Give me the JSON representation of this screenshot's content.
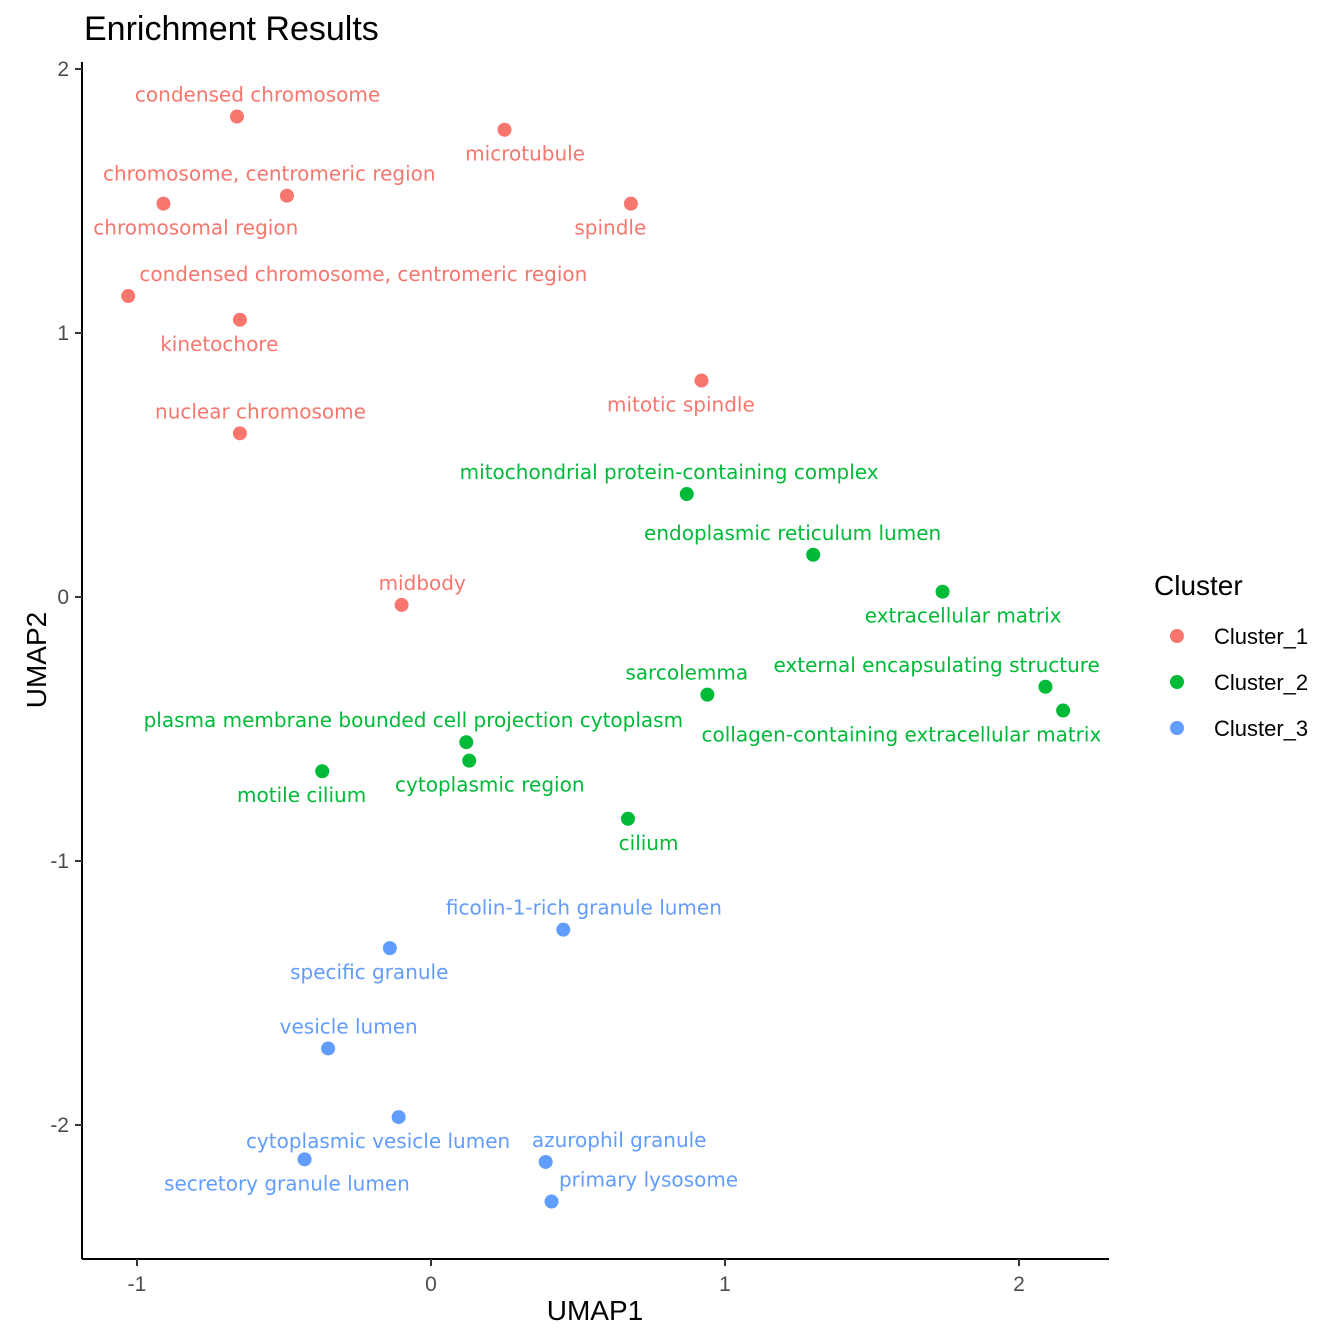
{
  "chart_data": {
    "type": "scatter",
    "title": "Enrichment Results",
    "xlabel": "UMAP1",
    "ylabel": "UMAP2",
    "xlim": [
      -1.2,
      2.3
    ],
    "ylim": [
      -2.5,
      2.05
    ],
    "x_ticks": [
      "-1",
      "0",
      "1",
      "2"
    ],
    "y_ticks": [
      "2",
      "1",
      "0",
      "-1",
      "-2"
    ],
    "grid": false,
    "legend": {
      "title": "Cluster",
      "position": "right",
      "entries": [
        {
          "name": "Cluster_1",
          "color": "#F8766D"
        },
        {
          "name": "Cluster_2",
          "color": "#00BA38"
        },
        {
          "name": "Cluster_3",
          "color": "#619CFF"
        }
      ]
    },
    "series": [
      {
        "name": "Cluster_1",
        "color": "#F8766D",
        "points": [
          {
            "label": "condensed chromosome",
            "x": -0.66,
            "y": 1.82,
            "label_pos": "above",
            "label_dx": 0.07
          },
          {
            "label": "microtubule",
            "x": 0.25,
            "y": 1.77,
            "label_pos": "below",
            "label_dx": 0.07
          },
          {
            "label": "chromosome, centromeric region",
            "x": -0.49,
            "y": 1.52,
            "label_pos": "above",
            "label_dx": -0.06
          },
          {
            "label": "chromosomal region",
            "x": -0.91,
            "y": 1.49,
            "label_pos": "below",
            "label_dx": 0.11
          },
          {
            "label": "spindle",
            "x": 0.68,
            "y": 1.49,
            "label_pos": "below",
            "label_dx": -0.07
          },
          {
            "label": "condensed chromosome, centromeric region",
            "x": -1.03,
            "y": 1.14,
            "label_pos": "above",
            "label_dx": 0.8
          },
          {
            "label": "kinetochore",
            "x": -0.65,
            "y": 1.05,
            "label_pos": "below",
            "label_dx": -0.07
          },
          {
            "label": "mitotic spindle",
            "x": 0.92,
            "y": 0.82,
            "label_pos": "below",
            "label_dx": -0.07
          },
          {
            "label": "nuclear chromosome",
            "x": -0.65,
            "y": 0.62,
            "label_pos": "above",
            "label_dx": 0.07
          },
          {
            "label": "midbody",
            "x": -0.1,
            "y": -0.03,
            "label_pos": "above",
            "label_dx": 0.07
          }
        ]
      },
      {
        "name": "Cluster_2",
        "color": "#00BA38",
        "points": [
          {
            "label": "mitochondrial protein-containing complex",
            "x": 0.87,
            "y": 0.39,
            "label_pos": "above",
            "label_dx": -0.06
          },
          {
            "label": "endoplasmic reticulum lumen",
            "x": 1.3,
            "y": 0.16,
            "label_pos": "above",
            "label_dx": -0.07
          },
          {
            "label": "extracellular matrix",
            "x": 1.74,
            "y": 0.02,
            "label_pos": "below",
            "label_dx": 0.07
          },
          {
            "label": "sarcolemma",
            "x": 0.94,
            "y": -0.37,
            "label_pos": "above",
            "label_dx": -0.07
          },
          {
            "label": "external encapsulating structure",
            "x": 2.09,
            "y": -0.34,
            "label_pos": "above",
            "label_dx": -0.37
          },
          {
            "label": "collagen-containing extracellular matrix",
            "x": 2.15,
            "y": -0.43,
            "label_pos": "below",
            "label_dx": -0.55
          },
          {
            "label": "plasma membrane bounded cell projection cytoplasm",
            "x": 0.12,
            "y": -0.55,
            "label_pos": "above",
            "label_dx": -0.18
          },
          {
            "label": "cytoplasmic region",
            "x": 0.13,
            "y": -0.62,
            "label_pos": "below",
            "label_dx": 0.07
          },
          {
            "label": "motile cilium",
            "x": -0.37,
            "y": -0.66,
            "label_pos": "below",
            "label_dx": -0.07
          },
          {
            "label": "cilium",
            "x": 0.67,
            "y": -0.84,
            "label_pos": "below",
            "label_dx": 0.07
          }
        ]
      },
      {
        "name": "Cluster_3",
        "color": "#619CFF",
        "points": [
          {
            "label": "ficolin-1-rich granule lumen",
            "x": 0.45,
            "y": -1.26,
            "label_pos": "above",
            "label_dx": 0.07
          },
          {
            "label": "specific granule",
            "x": -0.14,
            "y": -1.33,
            "label_pos": "below",
            "label_dx": -0.07
          },
          {
            "label": "vesicle lumen",
            "x": -0.35,
            "y": -1.71,
            "label_pos": "above",
            "label_dx": 0.07
          },
          {
            "label": "cytoplasmic vesicle lumen",
            "x": -0.11,
            "y": -1.97,
            "label_pos": "below",
            "label_dx": -0.07
          },
          {
            "label": "azurophil granule",
            "x": 0.39,
            "y": -2.14,
            "label_pos": "above",
            "label_dx": 0.25
          },
          {
            "label": "secretory granule lumen",
            "x": -0.43,
            "y": -2.13,
            "label_pos": "below",
            "label_dx": -0.06
          },
          {
            "label": "primary lysosome",
            "x": 0.41,
            "y": -2.29,
            "label_pos": "above",
            "label_dx": 0.33
          }
        ]
      }
    ]
  }
}
